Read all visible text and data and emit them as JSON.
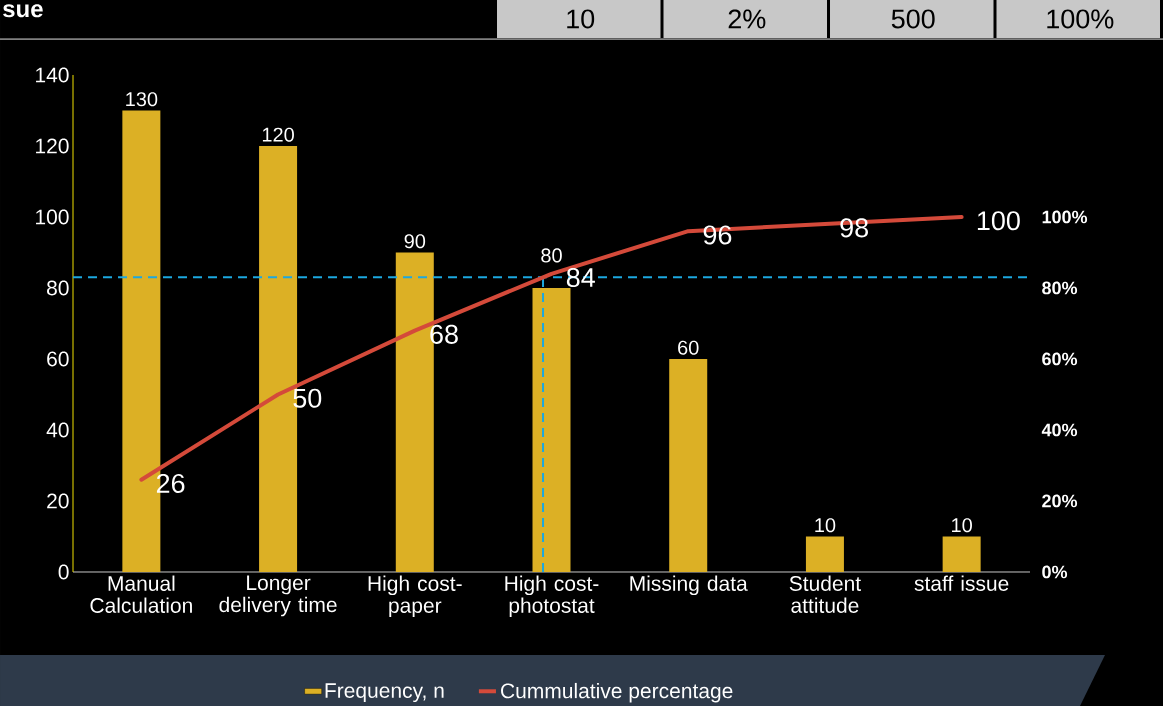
{
  "chart_data": {
    "type": "bar",
    "categories": [
      "Manual Calculation",
      "Longer delivery time",
      "High cost-paper",
      "High cost-photostat",
      "Missing data",
      "Student attitude",
      "staff issue"
    ],
    "series": [
      {
        "name": "Frequency, n",
        "color": "#dcb025",
        "values": [
          130,
          120,
          90,
          80,
          60,
          10,
          10
        ]
      },
      {
        "name": "Cummulative percentage",
        "type": "line",
        "axis": "y2",
        "color": "#d44a3a",
        "values": [
          26,
          50,
          68,
          84,
          96,
          98,
          100
        ]
      }
    ],
    "ylim": [
      0,
      140
    ],
    "yticks": [
      0,
      20,
      40,
      60,
      80,
      100,
      120,
      140
    ],
    "y2lim": [
      0,
      140
    ],
    "y2ticks": [
      {
        "value": 0,
        "label": "0%"
      },
      {
        "value": 20,
        "label": "20%"
      },
      {
        "value": 40,
        "label": "40%"
      },
      {
        "value": 60,
        "label": "60%"
      },
      {
        "value": 80,
        "label": "80%"
      },
      {
        "value": 100,
        "label": "100%"
      }
    ],
    "ref_lines": [
      {
        "axis": "y",
        "value": 83,
        "color": "#1ca8e0",
        "line_style": "dashed"
      }
    ],
    "data_labels": true,
    "legend": "bottom",
    "grid": false,
    "annotations": [
      "sue",
      "10",
      "2%",
      "500",
      "100%"
    ]
  }
}
